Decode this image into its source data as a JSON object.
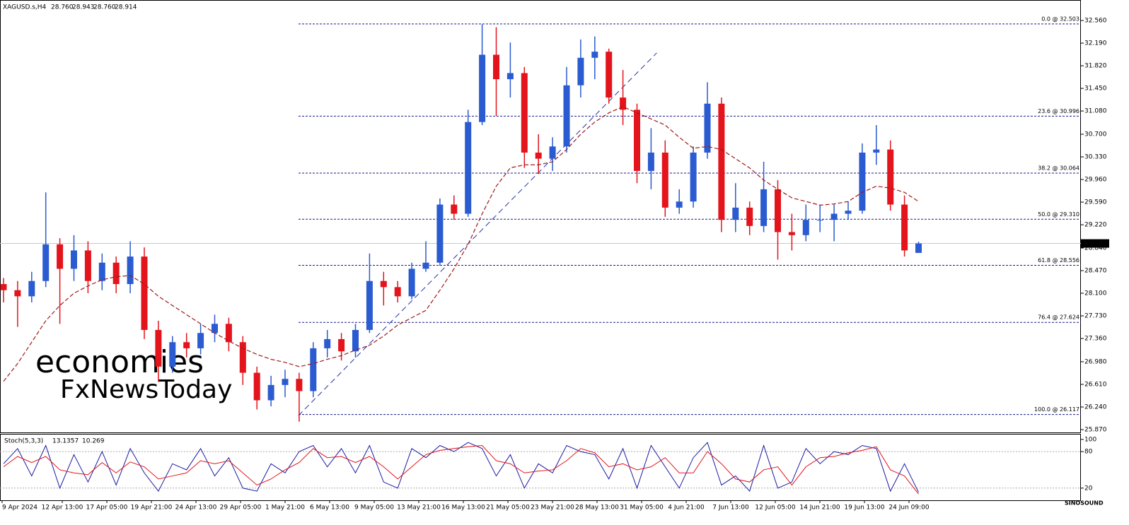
{
  "chart_data": [
    {
      "type": "candlestick",
      "title": "XAGUSD.s,H4",
      "last_bar": [
        {
          "value": 28.76,
          "label": "28.760"
        },
        {
          "value": 28.943,
          "label": "28.943"
        },
        {
          "value": 28.76,
          "label": "28.760"
        },
        {
          "value": 28.914,
          "label": "28.914"
        }
      ],
      "x_labels": [
        "9 Apr 2024",
        "12 Apr 13:00",
        "17 Apr 05:00",
        "19 Apr 21:00",
        "24 Apr 13:00",
        "29 Apr 05:00",
        "1 May 21:00",
        "6 May 13:00",
        "9 May 05:00",
        "13 May 21:00",
        "16 May 13:00",
        "21 May 05:00",
        "23 May 21:00",
        "28 May 13:00",
        "31 May 05:00",
        "4 Jun 21:00",
        "7 Jun 13:00",
        "12 Jun 05:00",
        "14 Jun 21:00",
        "19 Jun 13:00",
        "24 Jun 09:00"
      ],
      "open": [
        28.25,
        28.15,
        28.05,
        28.3,
        28.9,
        28.5,
        28.8,
        28.3,
        28.6,
        28.25,
        28.7,
        27.5,
        26.9,
        27.3,
        27.2,
        27.45,
        27.6,
        27.3,
        26.8,
        26.35,
        26.6,
        26.7,
        26.5,
        27.2,
        27.35,
        27.15,
        27.5,
        28.3,
        28.2,
        28.05,
        28.5,
        28.6,
        29.55,
        29.4,
        30.9,
        32.0,
        31.6,
        31.7,
        30.4,
        30.3,
        30.5,
        31.5,
        31.95,
        32.05,
        31.3,
        31.1,
        30.1,
        30.4,
        29.5,
        29.6,
        30.4,
        31.2,
        29.3,
        29.5,
        29.2,
        29.8,
        29.1,
        29.05,
        29.3,
        29.3,
        29.4,
        29.45,
        30.4,
        30.45,
        29.55,
        28.76
      ],
      "high": [
        28.35,
        28.3,
        28.45,
        29.75,
        29.0,
        29.05,
        28.95,
        28.75,
        28.7,
        28.95,
        28.85,
        27.65,
        27.4,
        27.45,
        27.6,
        27.75,
        27.7,
        27.4,
        26.9,
        26.75,
        26.85,
        26.8,
        27.3,
        27.5,
        27.45,
        27.6,
        28.75,
        28.45,
        28.3,
        28.6,
        28.95,
        29.65,
        29.7,
        31.1,
        32.5,
        32.45,
        32.2,
        31.8,
        30.7,
        30.65,
        31.8,
        32.25,
        32.3,
        32.1,
        31.75,
        31.2,
        30.8,
        30.6,
        29.8,
        30.5,
        31.55,
        31.3,
        29.9,
        29.6,
        30.25,
        29.95,
        29.4,
        29.55,
        29.55,
        29.55,
        29.6,
        30.55,
        30.85,
        30.6,
        29.7,
        28.943
      ],
      "low": [
        27.95,
        27.55,
        27.95,
        28.2,
        27.6,
        28.3,
        28.1,
        28.15,
        28.1,
        28.1,
        27.35,
        26.65,
        26.8,
        27.05,
        27.1,
        27.3,
        27.15,
        26.6,
        26.2,
        26.25,
        26.4,
        26.0,
        26.4,
        27.05,
        27.0,
        27.05,
        27.45,
        27.9,
        27.95,
        28.0,
        28.45,
        28.55,
        29.3,
        29.35,
        30.85,
        31.0,
        31.3,
        30.15,
        30.05,
        30.1,
        30.4,
        31.3,
        31.6,
        31.2,
        30.85,
        29.9,
        29.8,
        29.35,
        29.4,
        29.5,
        30.3,
        29.1,
        29.1,
        29.05,
        29.1,
        28.65,
        28.8,
        28.95,
        29.1,
        28.95,
        29.3,
        29.4,
        30.2,
        29.45,
        28.7,
        28.76
      ],
      "close": [
        28.15,
        28.05,
        28.3,
        28.9,
        28.5,
        28.8,
        28.3,
        28.6,
        28.25,
        28.7,
        27.5,
        26.9,
        27.3,
        27.2,
        27.45,
        27.6,
        27.3,
        26.8,
        26.35,
        26.6,
        26.7,
        26.5,
        27.2,
        27.35,
        27.15,
        27.5,
        28.3,
        28.2,
        28.05,
        28.5,
        28.6,
        29.55,
        29.4,
        30.9,
        32.0,
        31.6,
        31.7,
        30.4,
        30.3,
        30.5,
        31.5,
        31.95,
        32.05,
        31.3,
        31.1,
        30.1,
        30.4,
        29.5,
        29.6,
        30.4,
        31.2,
        29.3,
        29.5,
        29.2,
        29.8,
        29.1,
        29.05,
        29.3,
        29.3,
        29.4,
        29.45,
        30.4,
        30.45,
        29.55,
        28.8,
        28.914
      ],
      "up_color": "#2a5bd0",
      "down_color": "#e3141b",
      "ma": {
        "color": "#9b1c1c",
        "values": [
          26.66,
          26.95,
          27.3,
          27.65,
          27.9,
          28.1,
          28.22,
          28.32,
          28.37,
          28.39,
          28.25,
          28.05,
          27.9,
          27.75,
          27.6,
          27.45,
          27.32,
          27.2,
          27.1,
          27.02,
          26.97,
          26.9,
          26.95,
          27.02,
          27.08,
          27.17,
          27.25,
          27.4,
          27.58,
          27.7,
          27.82,
          28.15,
          28.5,
          28.9,
          29.4,
          29.85,
          30.15,
          30.2,
          30.2,
          30.25,
          30.45,
          30.7,
          30.9,
          31.05,
          31.15,
          31.05,
          30.95,
          30.85,
          30.65,
          30.47,
          30.5,
          30.45,
          30.3,
          30.15,
          29.95,
          29.8,
          29.66,
          29.6,
          29.54,
          29.56,
          29.6,
          29.75,
          29.85,
          29.82,
          29.75,
          29.6
        ]
      },
      "fib_color": "#1a1a8c",
      "fib_levels": [
        {
          "value": 32.503,
          "label": "0.0 @ 32.503"
        },
        {
          "value": 30.996,
          "label": "23.6 @ 30.996"
        },
        {
          "value": 30.064,
          "label": "38.2 @ 30.064"
        },
        {
          "value": 29.31,
          "label": "50.0 @ 29.310"
        },
        {
          "value": 28.556,
          "label": "61.8 @ 28.556"
        },
        {
          "value": 27.624,
          "label": "76.4 @ 27.624"
        },
        {
          "value": 26.117,
          "label": "100.0 @ 26.117"
        }
      ],
      "trendline": {
        "color": "#2233aa",
        "x": [
          20.95,
          46.4
        ],
        "y": [
          26.1,
          32.03
        ]
      },
      "current_price": 28.914,
      "ylim": [
        25.824,
        32.872
      ],
      "yticks": [
        {
          "value": 32.56,
          "label": "32.560"
        },
        {
          "value": 32.19,
          "label": "32.190"
        },
        {
          "value": 31.82,
          "label": "31.820"
        },
        {
          "value": 31.45,
          "label": "31.450"
        },
        {
          "value": 31.08,
          "label": "31.080"
        },
        {
          "value": 30.7,
          "label": "30.700"
        },
        {
          "value": 30.33,
          "label": "30.330"
        },
        {
          "value": 29.96,
          "label": "29.960"
        },
        {
          "value": 29.59,
          "label": "29.590"
        },
        {
          "value": 29.22,
          "label": "29.220"
        },
        {
          "value": 28.84,
          "label": "28.840"
        },
        {
          "value": 28.47,
          "label": "28.470"
        },
        {
          "value": 28.1,
          "label": "28.100"
        },
        {
          "value": 27.73,
          "label": "27.730"
        },
        {
          "value": 27.36,
          "label": "27.360"
        },
        {
          "value": 26.98,
          "label": "26.980"
        },
        {
          "value": 26.61,
          "label": "26.610"
        },
        {
          "value": 26.24,
          "label": "26.240"
        },
        {
          "value": 25.87,
          "label": "25.870"
        }
      ],
      "watermark": [
        "economies",
        "FxNewsToday"
      ],
      "logo": "SINOSOUND"
    },
    {
      "type": "stochastic",
      "title": "Stoch(5,3,3)",
      "series": [
        {
          "color": "#1a1aa0",
          "values": [
            60,
            85,
            40,
            90,
            20,
            75,
            30,
            80,
            25,
            85,
            45,
            15,
            60,
            50,
            85,
            40,
            70,
            20,
            15,
            60,
            45,
            80,
            90,
            55,
            85,
            45,
            90,
            30,
            20,
            85,
            70,
            90,
            80,
            95,
            85,
            40,
            75,
            20,
            60,
            45,
            90,
            80,
            75,
            35,
            85,
            20,
            90,
            55,
            20,
            70,
            95,
            25,
            40,
            15,
            90,
            20,
            30,
            85,
            60,
            80,
            75,
            90,
            85,
            15,
            60,
            13.1357
          ]
        },
        {
          "color": "#e3141b",
          "values": [
            55,
            72,
            62,
            72,
            50,
            45,
            42,
            62,
            45,
            63,
            55,
            35,
            40,
            45,
            65,
            60,
            65,
            45,
            25,
            35,
            50,
            62,
            85,
            70,
            72,
            62,
            72,
            55,
            35,
            55,
            75,
            82,
            85,
            88,
            90,
            65,
            60,
            45,
            48,
            50,
            65,
            85,
            78,
            55,
            60,
            50,
            55,
            70,
            45,
            45,
            80,
            60,
            35,
            30,
            50,
            55,
            25,
            55,
            70,
            72,
            78,
            82,
            88,
            50,
            40,
            10.269
          ]
        }
      ],
      "ylim": [
        0,
        108
      ],
      "yticks": [
        100,
        80,
        20
      ],
      "levels": [
        80,
        20
      ]
    }
  ]
}
